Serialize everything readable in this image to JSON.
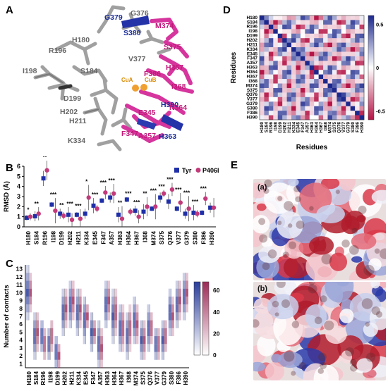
{
  "panel_labels": {
    "a": "A",
    "b": "B",
    "c": "C",
    "d": "D",
    "e": "E"
  },
  "residues": [
    "H180",
    "S184",
    "R196",
    "I198",
    "D199",
    "H202",
    "H211",
    "K334",
    "E345",
    "F347",
    "A357",
    "H363",
    "H364",
    "H367",
    "I368",
    "M374",
    "S375",
    "Q376",
    "V377",
    "G379",
    "S380",
    "F386",
    "H390"
  ],
  "panel_a": {
    "labels": [
      {
        "text": "G379",
        "color": "#1b2d9a"
      },
      {
        "text": "G376",
        "color": "#666666"
      },
      {
        "text": "M374",
        "color": "#c2187a"
      },
      {
        "text": "S380",
        "color": "#1b2d9a"
      },
      {
        "text": "S375",
        "color": "#c2187a"
      },
      {
        "text": "R196",
        "color": "#666666"
      },
      {
        "text": "H180",
        "color": "#666666"
      },
      {
        "text": "V377",
        "color": "#666666"
      },
      {
        "text": "S184",
        "color": "#666666"
      },
      {
        "text": "F386",
        "color": "#c2187a"
      },
      {
        "text": "H367",
        "color": "#c2187a"
      },
      {
        "text": "I198",
        "color": "#666666"
      },
      {
        "text": "CuA",
        "color": "#d98a00"
      },
      {
        "text": "CuB",
        "color": "#d98a00"
      },
      {
        "text": "I368",
        "color": "#c2187a"
      },
      {
        "text": "D199",
        "color": "#666666"
      },
      {
        "text": "H390",
        "color": "#1b2d9a"
      },
      {
        "text": "N364",
        "color": "#c2187a"
      },
      {
        "text": "H202",
        "color": "#666666"
      },
      {
        "text": "E345",
        "color": "#c2187a"
      },
      {
        "text": "H211",
        "color": "#666666"
      },
      {
        "text": "F347",
        "color": "#c2187a"
      },
      {
        "text": "A357",
        "color": "#c2187a"
      },
      {
        "text": "H363",
        "color": "#1b2d9a"
      },
      {
        "text": "K334",
        "color": "#666666"
      }
    ]
  },
  "chart_data": [
    {
      "id": "B",
      "type": "scatter",
      "ylabel": "RMSD (Å)",
      "ylim": [
        0,
        6
      ],
      "yticks": [
        0,
        1,
        2,
        3,
        4,
        5,
        6
      ],
      "legend_position": "top-right",
      "series": [
        {
          "name": "Tyr",
          "marker": "square",
          "color": "#1f2fa8",
          "values": [
            0.9,
            1.05,
            4.8,
            2.2,
            1.3,
            1.2,
            1.2,
            1.3,
            2.1,
            2.6,
            2.9,
            1.2,
            2.7,
            1.6,
            1.5,
            1.8,
            2.9,
            2.5,
            1.8,
            1.3,
            1.4,
            1.4,
            1.9
          ]
        },
        {
          "name": "P406L",
          "marker": "circle",
          "color": "#c23a7a",
          "values": [
            1.0,
            1.3,
            5.6,
            1.6,
            1.1,
            0.7,
            0.8,
            2.9,
            1.8,
            3.4,
            3.3,
            0.8,
            1.5,
            1.0,
            2.0,
            2.0,
            3.3,
            3.7,
            2.4,
            1.8,
            1.3,
            2.8,
            1.9
          ]
        }
      ],
      "significance": [
        "*",
        "**",
        "**",
        "***",
        "**",
        "***",
        "***",
        "*",
        "***",
        "***",
        "***",
        "**",
        "***",
        "***",
        "**",
        "***",
        "***",
        "***",
        "***",
        "***",
        "***",
        "***",
        ""
      ]
    },
    {
      "id": "C",
      "type": "heatmap",
      "ylabel": "Number of contacts",
      "yticks": [
        1,
        2,
        3,
        4,
        5,
        6,
        7,
        8,
        9,
        10,
        11,
        12,
        13
      ],
      "colorbars": [
        {
          "series": "Tyr",
          "color": "#2a3d9b",
          "ticks": [
            0,
            20,
            40,
            60
          ]
        },
        {
          "series": "P406L",
          "color": "#9c2a57",
          "ticks": [
            0,
            20,
            40,
            60
          ]
        }
      ],
      "contact_ranges": [
        {
          "residue": "H180",
          "tyr": [
            7,
            13
          ],
          "mut": [
            8,
            12
          ]
        },
        {
          "residue": "S184",
          "tyr": [
            2,
            7
          ],
          "mut": [
            3,
            7
          ]
        },
        {
          "residue": "R196",
          "tyr": [
            3,
            6
          ],
          "mut": [
            2,
            5
          ]
        },
        {
          "residue": "I198",
          "tyr": [
            2,
            5
          ],
          "mut": [
            3,
            6
          ]
        },
        {
          "residue": "D199",
          "tyr": [
            1,
            4
          ],
          "mut": [
            1,
            3
          ]
        },
        {
          "residue": "H202",
          "tyr": [
            5,
            10
          ],
          "mut": [
            6,
            10
          ]
        },
        {
          "residue": "H211",
          "tyr": [
            6,
            11
          ],
          "mut": [
            7,
            11
          ]
        },
        {
          "residue": "K334",
          "tyr": [
            5,
            10
          ],
          "mut": [
            6,
            10
          ]
        },
        {
          "residue": "E345",
          "tyr": [
            4,
            9
          ],
          "mut": [
            6,
            8
          ]
        },
        {
          "residue": "F347",
          "tyr": [
            3,
            7
          ],
          "mut": [
            4,
            6
          ]
        },
        {
          "residue": "A357",
          "tyr": [
            1,
            6
          ],
          "mut": [
            1,
            5
          ]
        },
        {
          "residue": "H363",
          "tyr": [
            6,
            11
          ],
          "mut": [
            7,
            11
          ]
        },
        {
          "residue": "H364",
          "tyr": [
            4,
            10
          ],
          "mut": [
            5,
            10
          ]
        },
        {
          "residue": "H367",
          "tyr": [
            3,
            8
          ],
          "mut": [
            3,
            8
          ]
        },
        {
          "residue": "I368",
          "tyr": [
            2,
            7
          ],
          "mut": [
            3,
            8
          ]
        },
        {
          "residue": "M374",
          "tyr": [
            4,
            9
          ],
          "mut": [
            4,
            8
          ]
        },
        {
          "residue": "S375",
          "tyr": [
            2,
            6
          ],
          "mut": [
            2,
            6
          ]
        },
        {
          "residue": "Q376",
          "tyr": [
            3,
            8
          ],
          "mut": [
            4,
            7
          ]
        },
        {
          "residue": "V377",
          "tyr": [
            2,
            5
          ],
          "mut": [
            2,
            5
          ]
        },
        {
          "residue": "G379",
          "tyr": [
            2,
            6
          ],
          "mut": [
            3,
            6
          ]
        },
        {
          "residue": "S380",
          "tyr": [
            5,
            10
          ],
          "mut": [
            5,
            9
          ]
        },
        {
          "residue": "F386",
          "tyr": [
            6,
            11
          ],
          "mut": [
            7,
            11
          ]
        },
        {
          "residue": "H390",
          "tyr": [
            7,
            12
          ],
          "mut": [
            8,
            12
          ]
        }
      ]
    },
    {
      "id": "D",
      "type": "heatmap",
      "xlabel": "Residues",
      "ylabel": "Residues",
      "colorbar_ticks": [
        0.5,
        0,
        -0.5
      ],
      "value_range": [
        -0.6,
        0.6
      ]
    }
  ],
  "panel_e": {
    "sub_a": "(a)",
    "sub_b": "(b)"
  }
}
